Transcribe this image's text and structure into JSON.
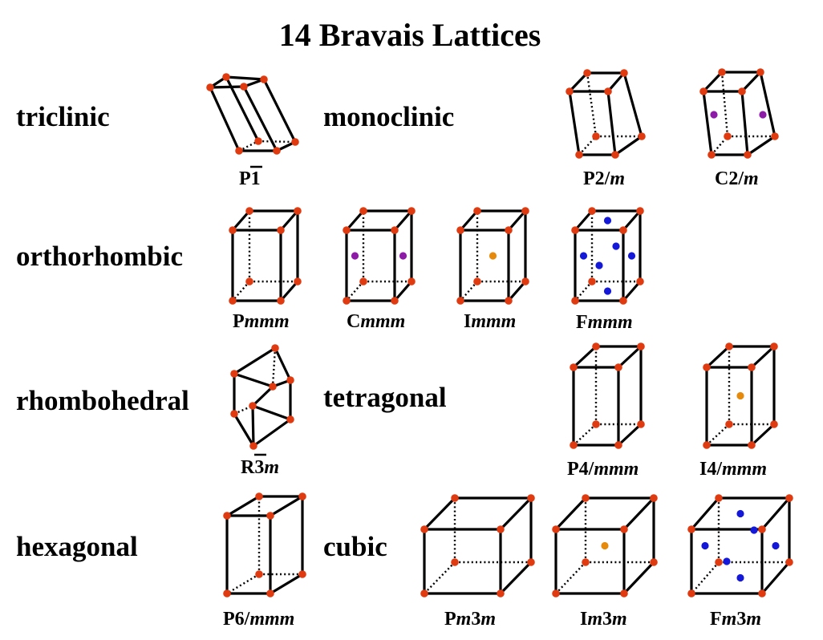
{
  "title": "14 Bravais Lattices",
  "colors": {
    "lattice_point": "#e03a10",
    "base_center": "#8e1aa8",
    "body_center": "#e68a0c",
    "face_center": "#1418d8",
    "edge": "#000000"
  },
  "systems": {
    "triclinic": "triclinic",
    "monoclinic": "monoclinic",
    "orthorhombic": "orthorhombic",
    "rhombohedral": "rhombohedral",
    "tetragonal": "tetragonal",
    "hexagonal": "hexagonal",
    "cubic": "cubic"
  },
  "lattices": {
    "P1bar": {
      "prefix": "P",
      "body": "1",
      "italic": "",
      "overbar": true
    },
    "P2m": {
      "prefix": "P",
      "body": "2/",
      "italic": "m",
      "overbar": false
    },
    "C2m": {
      "prefix": "C",
      "body": "2/",
      "italic": "m",
      "overbar": false
    },
    "Pmmm": {
      "prefix": "P",
      "body": "",
      "italic": "mmm",
      "overbar": false
    },
    "Cmmm": {
      "prefix": "C",
      "body": "",
      "italic": "mmm",
      "overbar": false
    },
    "Immm": {
      "prefix": "I",
      "body": "",
      "italic": "mmm",
      "overbar": false
    },
    "Fmmm": {
      "prefix": "F",
      "body": "",
      "italic": "mmm",
      "overbar": false
    },
    "R3barm": {
      "prefix": "R",
      "body": "3",
      "italic": "m",
      "overbar": true
    },
    "P4mmm": {
      "prefix": "P",
      "body": "4/",
      "italic": "mmm",
      "overbar": false
    },
    "I4mmm": {
      "prefix": "I",
      "body": "4/",
      "italic": "mmm",
      "overbar": false
    },
    "P6mmm": {
      "prefix": "P",
      "body": "6/",
      "italic": "mmm",
      "overbar": false
    },
    "Pm3m": {
      "prefix": "P",
      "body": "",
      "italic": "m",
      "suffix": "3",
      "italic2": "m",
      "overbar": false
    },
    "Im3m": {
      "prefix": "I",
      "body": "",
      "italic": "m",
      "suffix": "3",
      "italic2": "m",
      "overbar": false
    },
    "Fm3m": {
      "prefix": "F",
      "body": "",
      "italic": "m",
      "suffix": "3",
      "italic2": "m",
      "overbar": false
    }
  }
}
